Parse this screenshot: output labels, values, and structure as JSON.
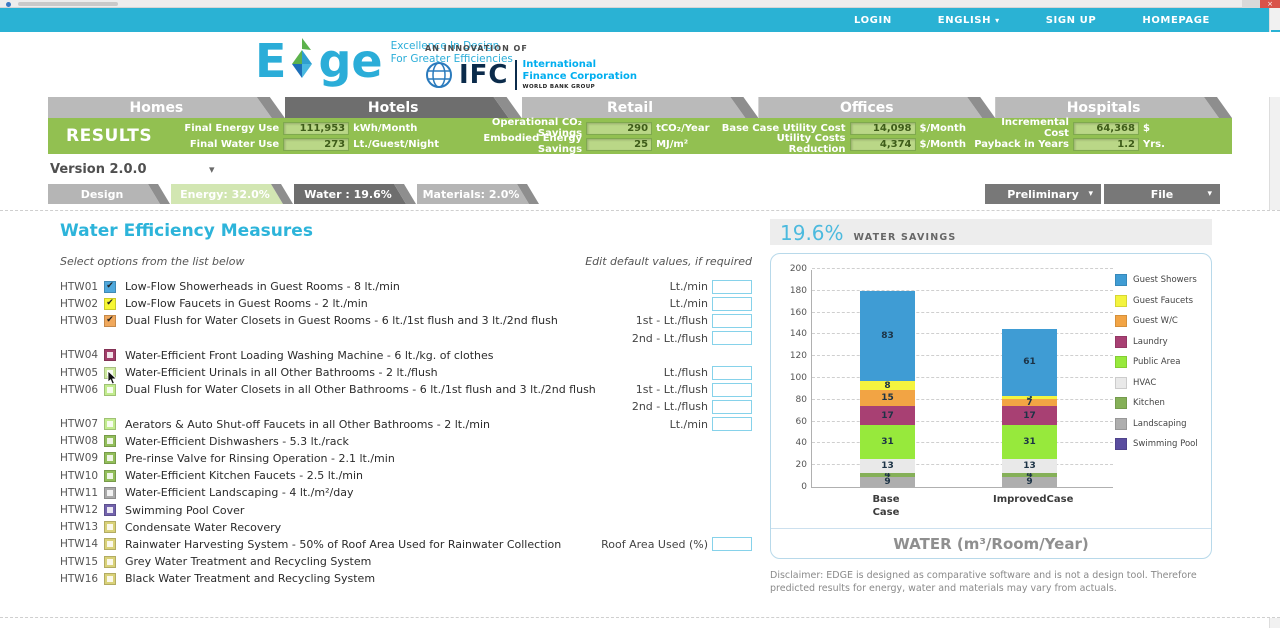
{
  "icons": {
    "chevron_down": "▾",
    "close": "×",
    "check": "✔"
  },
  "topbar": {
    "links": [
      {
        "label": "LOGIN",
        "chevron": false
      },
      {
        "label": "ENGLISH",
        "chevron": true
      },
      {
        "label": "SIGN UP",
        "chevron": false
      },
      {
        "label": "HOMEPAGE",
        "chevron": false
      }
    ]
  },
  "logo": {
    "edge_e": "E",
    "edge_ge": "ge",
    "tagline1": "Excellence In Design",
    "tagline2": "For Greater Efficiencies",
    "innovation": "AN INNOVATION OF",
    "ifc": "IFC",
    "corp1": "International",
    "corp2": "Finance Corporation",
    "wbg": "WORLD BANK GROUP"
  },
  "main_tabs": [
    {
      "label": "Homes",
      "active": false
    },
    {
      "label": "Hotels",
      "active": true
    },
    {
      "label": "Retail",
      "active": false
    },
    {
      "label": "Offices",
      "active": false
    },
    {
      "label": "Hospitals",
      "active": false
    }
  ],
  "results": {
    "label": "RESULTS",
    "groups": [
      {
        "rows": [
          {
            "label": "Final Energy Use",
            "value": "111,953",
            "unit": "kWh/Month"
          },
          {
            "label": "Final Water Use",
            "value": "273",
            "unit": "Lt./Guest/Night"
          }
        ]
      },
      {
        "rows": [
          {
            "label": "Operational CO₂ Savings",
            "value": "290",
            "unit": "tCO₂/Year"
          },
          {
            "label": "Embodied Energy Savings",
            "value": "25",
            "unit": "MJ/m²"
          }
        ]
      },
      {
        "rows": [
          {
            "label": "Base Case Utility Cost",
            "value": "14,098",
            "unit": "$/Month"
          },
          {
            "label": "Utility Costs Reduction",
            "value": "4,374",
            "unit": "$/Month"
          }
        ]
      },
      {
        "rows": [
          {
            "label": "Incremental Cost",
            "value": "64,368",
            "unit": "$"
          },
          {
            "label": "Payback in Years",
            "value": "1.2",
            "unit": "Yrs."
          }
        ]
      }
    ]
  },
  "version": {
    "label": "Version 2.0.0"
  },
  "sub_tabs": [
    {
      "label": "Design",
      "style": "gray"
    },
    {
      "label": "Energy: 32.0%",
      "style": "energy"
    },
    {
      "label": "Water : 19.6%",
      "style": "active"
    },
    {
      "label": "Materials: 2.0%",
      "style": "gray"
    }
  ],
  "actions": [
    {
      "label": "Preliminary"
    },
    {
      "label": "File"
    }
  ],
  "measures": {
    "title": "Water Efficiency Measures",
    "hint_left": "Select options from the list below",
    "hint_right": "Edit default values, if required",
    "checkbox_colors": {
      "blue": "#4fa8dc",
      "yellow": "#f7f733",
      "orange": "#f0a85c",
      "maroon": "#a03d68",
      "cursor": "#cdea9e",
      "lightgreen": "#c2ec8e",
      "green": "#92be5a",
      "gray": "#a9a9a9",
      "purple": "#7262ac",
      "khaki": "#d9d178"
    },
    "rows": [
      {
        "code": "HTW01",
        "checkbox": "blue",
        "checked": true,
        "label": "Low-Flow Showerheads in Guest Rooms - 8 lt./min",
        "input": "Lt./min"
      },
      {
        "code": "HTW02",
        "checkbox": "yellow",
        "checked": true,
        "label": "Low-Flow Faucets in Guest Rooms - 2 lt./min",
        "input": "Lt./min"
      },
      {
        "code": "HTW03",
        "checkbox": "orange",
        "checked": true,
        "label": "Dual Flush for Water Closets in Guest Rooms - 6 lt./1st flush and 3 lt./2nd flush",
        "input": "1st - Lt./flush"
      },
      {
        "input": "2nd - Lt./flush"
      },
      {
        "code": "HTW04",
        "checkbox": "maroon",
        "checked": false,
        "label": "Water-Efficient Front Loading Washing Machine - 6 lt./kg. of clothes"
      },
      {
        "code": "HTW05",
        "checkbox": "cursor",
        "checked": false,
        "label": "Water-Efficient Urinals in all Other Bathrooms - 2 lt./flush",
        "input": "Lt./flush",
        "has_cursor": true
      },
      {
        "code": "HTW06",
        "checkbox": "lightgreen",
        "checked": false,
        "label": "Dual Flush for Water Closets in all Other Bathrooms - 6 lt./1st flush and 3 lt./2nd flush",
        "input": "1st - Lt./flush"
      },
      {
        "input": "2nd - Lt./flush"
      },
      {
        "code": "HTW07",
        "checkbox": "lightgreen",
        "checked": false,
        "label": "Aerators & Auto Shut-off Faucets in all Other Bathrooms - 2 lt./min",
        "input": "Lt./min"
      },
      {
        "code": "HTW08",
        "checkbox": "green",
        "checked": false,
        "label": "Water-Efficient Dishwashers - 5.3 lt./rack"
      },
      {
        "code": "HTW09",
        "checkbox": "green",
        "checked": false,
        "label": "Pre-rinse Valve for Rinsing Operation - 2.1 lt./min"
      },
      {
        "code": "HTW10",
        "checkbox": "green",
        "checked": false,
        "label": "Water-Efficient Kitchen Faucets - 2.5 lt./min"
      },
      {
        "code": "HTW11",
        "checkbox": "gray",
        "checked": false,
        "label": "Water-Efficient Landscaping - 4 lt./m²/day"
      },
      {
        "code": "HTW12",
        "checkbox": "purple",
        "checked": false,
        "label": "Swimming Pool Cover"
      },
      {
        "code": "HTW13",
        "checkbox": "khaki",
        "checked": false,
        "label": "Condensate Water Recovery"
      },
      {
        "code": "HTW14",
        "checkbox": "khaki",
        "checked": false,
        "label": "Rainwater Harvesting System - 50% of Roof Area Used for Rainwater Collection",
        "input": "Roof Area Used (%)"
      },
      {
        "code": "HTW15",
        "checkbox": "khaki",
        "checked": false,
        "label": "Grey Water Treatment and Recycling System"
      },
      {
        "code": "HTW16",
        "checkbox": "khaki",
        "checked": false,
        "label": "Black Water Treatment and Recycling System"
      }
    ]
  },
  "savings": {
    "percent": "19.6%",
    "caption": "WATER SAVINGS"
  },
  "chart_data": {
    "type": "bar",
    "subtype": "stacked",
    "title": "WATER (m³/Room/Year)",
    "categories": [
      "Base Case",
      "ImprovedCase"
    ],
    "series": [
      {
        "name": "Guest Showers",
        "color": "#3f9cd4",
        "values": [
          83,
          61
        ]
      },
      {
        "name": "Guest Faucets",
        "color": "#f4f43e",
        "values": [
          8,
          3
        ]
      },
      {
        "name": "Guest W/C",
        "color": "#f2a444",
        "values": [
          15,
          7
        ]
      },
      {
        "name": "Laundry",
        "color": "#a84073",
        "values": [
          17,
          17
        ]
      },
      {
        "name": "Public Area",
        "color": "#97e93c",
        "values": [
          31,
          31
        ]
      },
      {
        "name": "HVAC",
        "color": "#e9e9e9",
        "values": [
          13,
          13
        ]
      },
      {
        "name": "Kitchen",
        "color": "#85b058",
        "values": [
          4,
          4
        ]
      },
      {
        "name": "Landscaping",
        "color": "#aeaeae",
        "values": [
          9,
          9
        ]
      },
      {
        "name": "Swimming Pool",
        "color": "#5a4d9f",
        "values": [
          0,
          0
        ]
      }
    ],
    "totals": [
      180,
      145
    ],
    "ylim": [
      0,
      200
    ],
    "ytick_step": 20,
    "grid": "dashed horizontal",
    "legend_position": "right"
  },
  "disclaimer": {
    "text": "Disclaimer: EDGE is designed as comparative software and is not a design tool. Therefore predicted results for energy, water and materials may vary from actuals."
  }
}
